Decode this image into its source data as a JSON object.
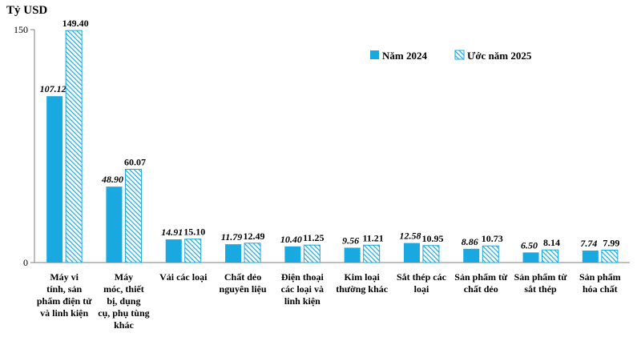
{
  "chart_data": {
    "type": "bar",
    "ylabel": "Tỷ USD",
    "ylim": [
      0,
      150
    ],
    "yticks": [
      "0",
      "150"
    ],
    "grid": false,
    "legend_position": "top-right",
    "colors": {
      "year2024": "#1aa8e0",
      "year2025_hatch": "#1aa8e0"
    },
    "categories": [
      [
        "Máy vi",
        "tính, sản",
        "phẩm điện tử",
        "và linh kiện"
      ],
      [
        "Máy",
        "móc, thiết",
        "bị, dụng",
        "cụ, phụ tùng",
        "khác"
      ],
      [
        "Vải các loại"
      ],
      [
        "Chất dẻo",
        "nguyên liệu"
      ],
      [
        "Điện thoại",
        "các loại và",
        "linh kiện"
      ],
      [
        "Kim loại",
        "thường khác"
      ],
      [
        "Sắt thép các",
        "loại"
      ],
      [
        "Sản phẩm từ",
        "chất dẻo"
      ],
      [
        "Sản phẩm từ",
        "sắt thép"
      ],
      [
        "Sản phẩm",
        "hóa chất"
      ]
    ],
    "series": [
      {
        "name": "Năm 2024",
        "values": [
          107.12,
          48.9,
          14.91,
          11.79,
          10.4,
          9.56,
          12.58,
          8.86,
          6.5,
          7.74
        ],
        "labels": [
          "107.12",
          "48.90",
          "14.91",
          "11.79",
          "10.40",
          "9.56",
          "12.58",
          "8.86",
          "6.50",
          "7.74"
        ]
      },
      {
        "name": "Ước năm 2025",
        "values": [
          149.4,
          60.07,
          15.1,
          12.49,
          11.25,
          11.21,
          10.95,
          10.73,
          8.14,
          7.99
        ],
        "labels": [
          "149.40",
          "60.07",
          "15.10",
          "12.49",
          "11.25",
          "11.21",
          "10.95",
          "10.73",
          "8.14",
          "7.99"
        ]
      }
    ]
  }
}
